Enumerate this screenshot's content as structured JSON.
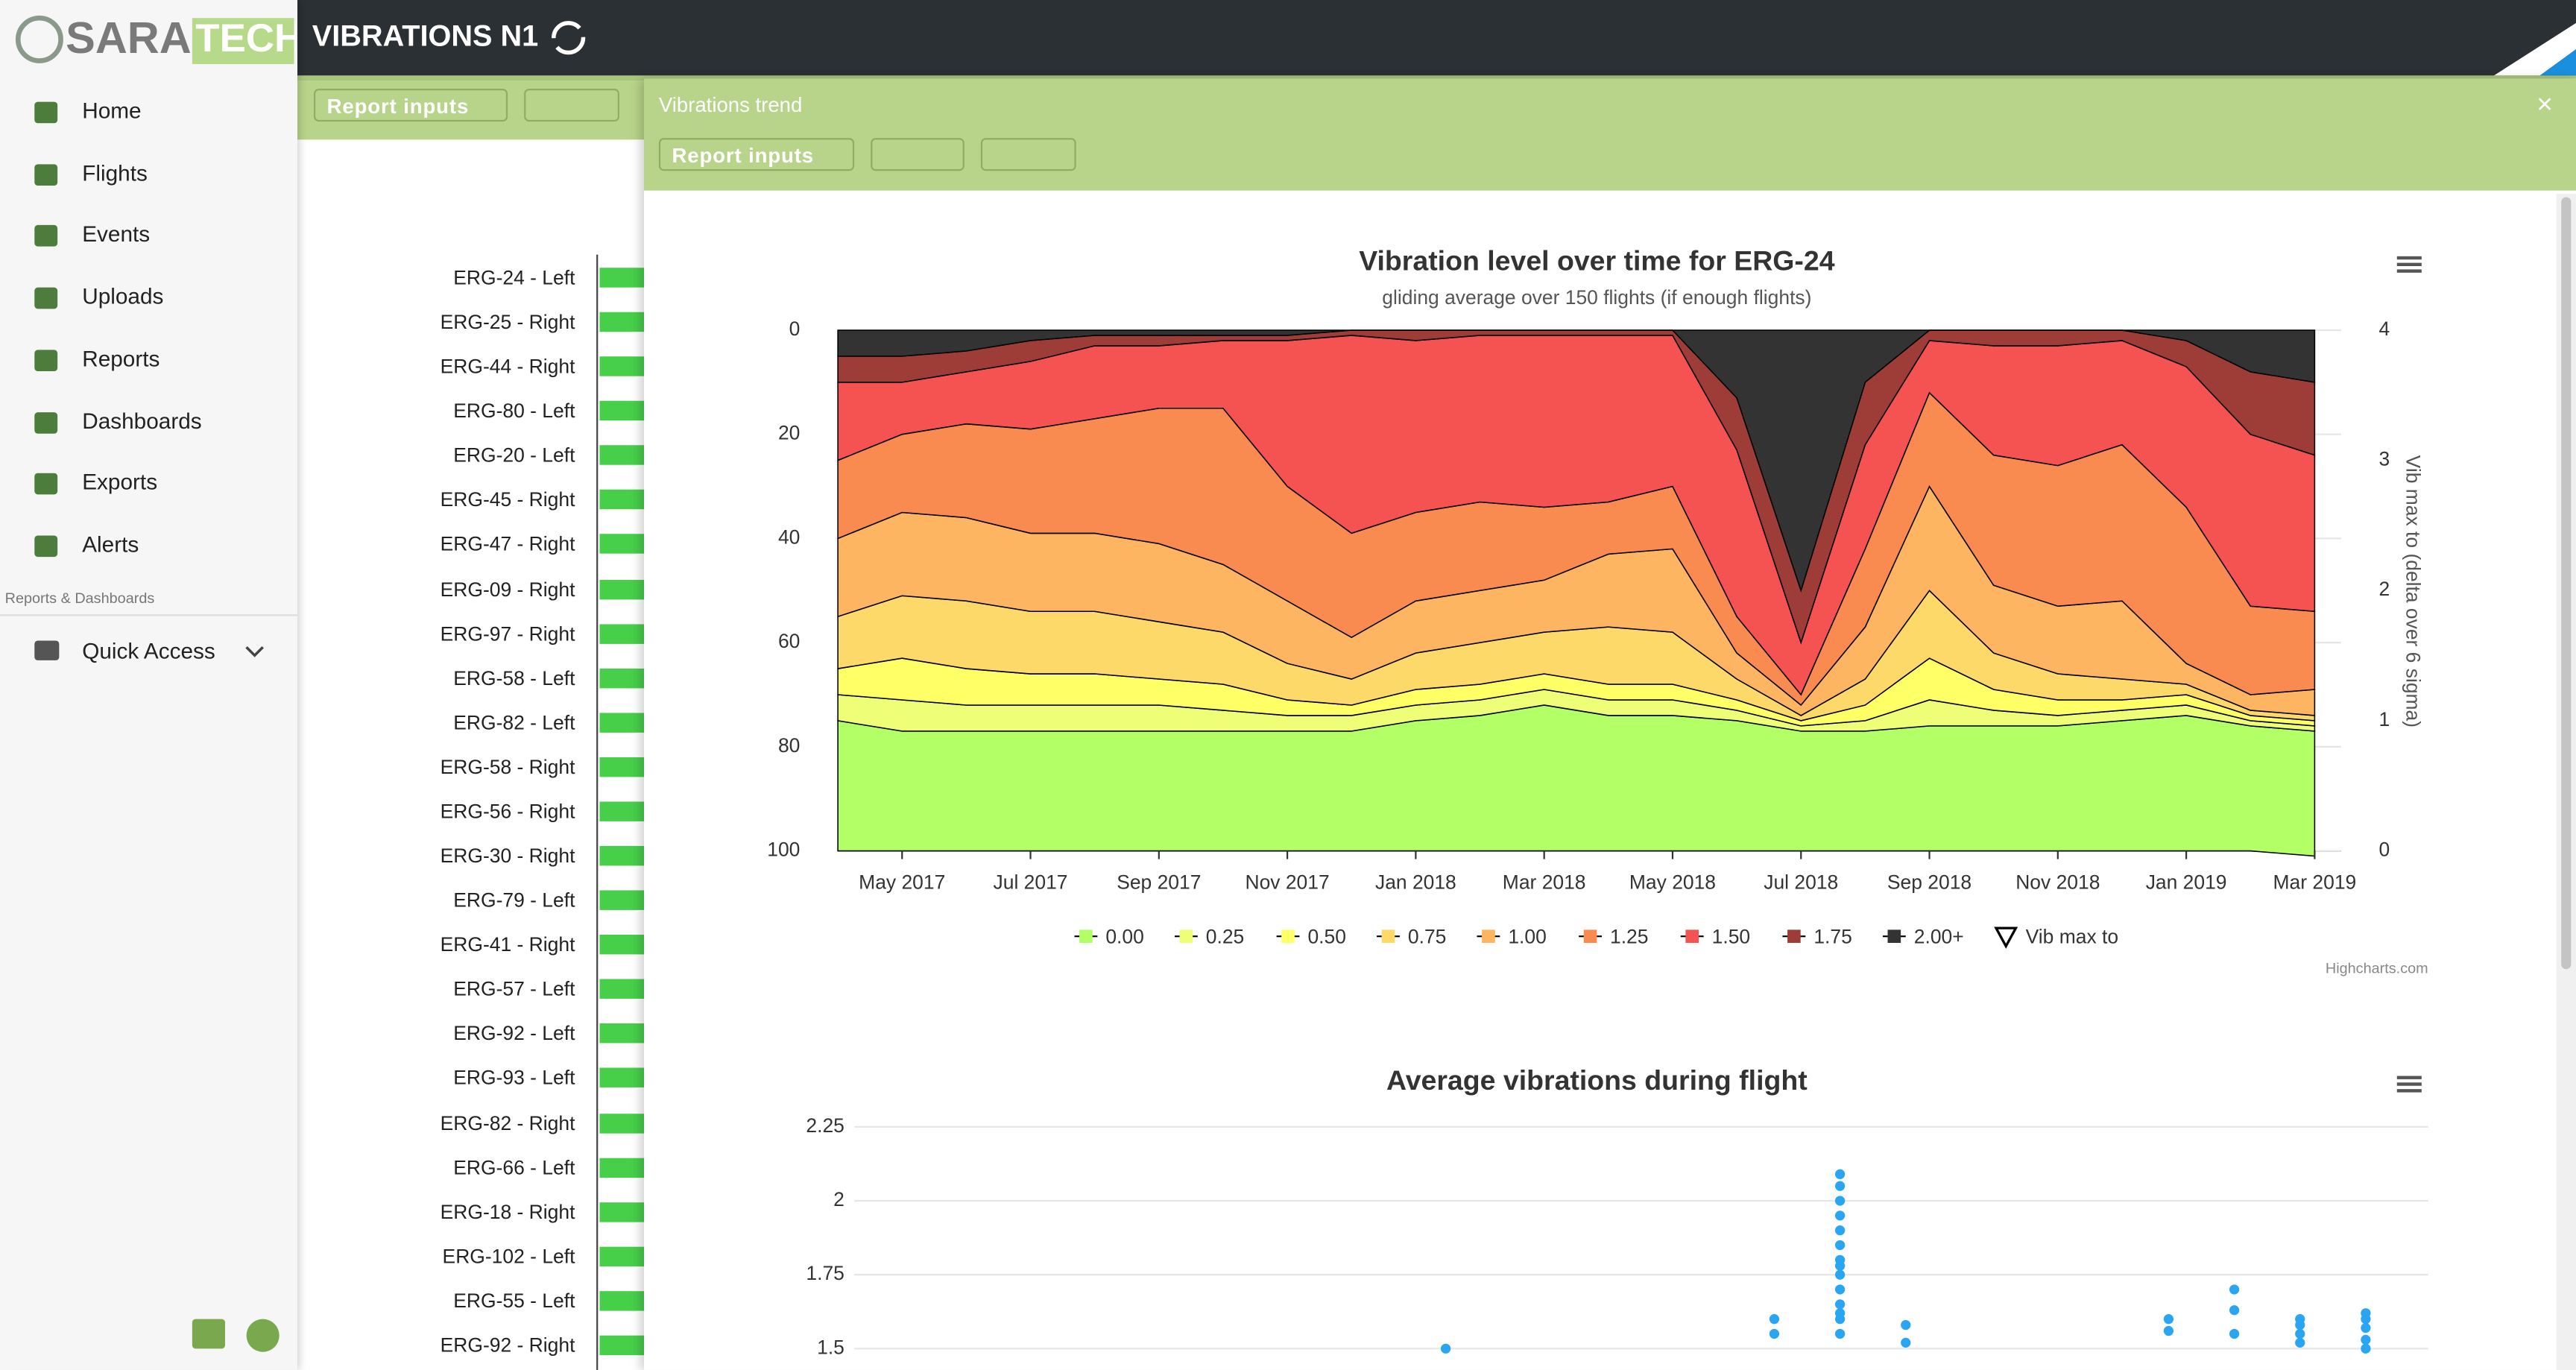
{
  "header": {
    "logo_1": "SARA",
    "logo_2": "TECH",
    "title": "VIBRATIONS N1"
  },
  "sidebar": {
    "menu": [
      "Home",
      "Flights",
      "Events",
      "Uploads",
      "Reports",
      "Dashboards",
      "Exports",
      "Alerts"
    ],
    "section": "Reports & Dashboards",
    "quick_access": "Quick Access"
  },
  "toolbar": {
    "report_inputs": "Report inputs"
  },
  "list": {
    "items": [
      "ERG-24 - Left",
      "ERG-25 - Right",
      "ERG-44 - Right",
      "ERG-80 - Left",
      "ERG-20 - Left",
      "ERG-45 - Right",
      "ERG-47 - Right",
      "ERG-09 - Right",
      "ERG-97 - Right",
      "ERG-58 - Left",
      "ERG-82 - Left",
      "ERG-58 - Right",
      "ERG-56 - Right",
      "ERG-30 - Right",
      "ERG-79 - Left",
      "ERG-41 - Right",
      "ERG-57 - Left",
      "ERG-92 - Left",
      "ERG-93 - Left",
      "ERG-82 - Right",
      "ERG-66 - Left",
      "ERG-18 - Right",
      "ERG-102 - Left",
      "ERG-55 - Left",
      "ERG-92 - Right"
    ]
  },
  "panel": {
    "title": "Vibrations trend",
    "report_inputs": "Report inputs",
    "close": "×"
  },
  "chart_data": [
    {
      "type": "area",
      "stacking": "percent",
      "title": "Vibration level over time for ERG-24",
      "subtitle": "gliding average over 150 flights (if enough flights)",
      "credit": "Highcharts.com",
      "y2label": "Vib max to (delta over 6 sigma)",
      "x": [
        "2017-04",
        "2017-05",
        "2017-06",
        "2017-07",
        "2017-08",
        "2017-09",
        "2017-10",
        "2017-11",
        "2017-12",
        "2018-01",
        "2018-02",
        "2018-03",
        "2018-04",
        "2018-05",
        "2018-06",
        "2018-07",
        "2018-08",
        "2018-09",
        "2018-10",
        "2018-11",
        "2018-12",
        "2019-01",
        "2019-02",
        "2019-03"
      ],
      "xlim": [
        "2017-04",
        "2019-04"
      ],
      "xticks": [
        {
          "value": "2017-05",
          "label": "May 2017"
        },
        {
          "value": "2017-07",
          "label": "Jul 2017"
        },
        {
          "value": "2017-09",
          "label": "Sep 2017"
        },
        {
          "value": "2017-11",
          "label": "Nov 2017"
        },
        {
          "value": "2018-01",
          "label": "Jan 2018"
        },
        {
          "value": "2018-03",
          "label": "Mar 2018"
        },
        {
          "value": "2018-05",
          "label": "May 2018"
        },
        {
          "value": "2018-07",
          "label": "Jul 2018"
        },
        {
          "value": "2018-09",
          "label": "Sep 2018"
        },
        {
          "value": "2018-11",
          "label": "Nov 2018"
        },
        {
          "value": "2019-01",
          "label": "Jan 2019"
        },
        {
          "value": "2019-03",
          "label": "Mar 2019"
        }
      ],
      "ylim": [
        0,
        100
      ],
      "yticks": [
        0,
        20,
        40,
        60,
        80,
        100
      ],
      "reversed": true,
      "y2lim": [
        0,
        4
      ],
      "y2ticks": [
        0,
        1,
        2,
        3,
        4
      ],
      "series": [
        {
          "name": "0.00",
          "color": "#b3ff66",
          "values": [
            25,
            23,
            23,
            23,
            23,
            23,
            23,
            23,
            23,
            25,
            26,
            28,
            26,
            26,
            25,
            23,
            23,
            24,
            24,
            24,
            25,
            26,
            24,
            24
          ]
        },
        {
          "name": "0.25",
          "color": "#eeff77",
          "values": [
            5,
            6,
            5,
            5,
            5,
            5,
            4,
            3,
            3,
            3,
            3,
            3,
            3,
            3,
            2,
            1,
            2,
            5,
            3,
            2,
            2,
            2,
            1,
            1
          ]
        },
        {
          "name": "0.50",
          "color": "#ffff66",
          "values": [
            5,
            8,
            7,
            6,
            6,
            5,
            5,
            3,
            2,
            3,
            3,
            3,
            3,
            3,
            2,
            1,
            3,
            8,
            4,
            3,
            2,
            2,
            1,
            1
          ]
        },
        {
          "name": "0.75",
          "color": "#fdd96a",
          "values": [
            10,
            12,
            13,
            12,
            12,
            11,
            10,
            7,
            5,
            7,
            8,
            8,
            11,
            10,
            4,
            1,
            5,
            13,
            7,
            5,
            4,
            2,
            1,
            1
          ]
        },
        {
          "name": "1.00",
          "color": "#fdb562",
          "values": [
            15,
            16,
            16,
            15,
            15,
            15,
            13,
            12,
            8,
            10,
            10,
            10,
            14,
            16,
            5,
            2,
            10,
            20,
            13,
            13,
            15,
            4,
            3,
            5
          ]
        },
        {
          "name": "1.25",
          "color": "#f98a50",
          "values": [
            15,
            15,
            18,
            20,
            22,
            26,
            30,
            22,
            20,
            17,
            17,
            14,
            10,
            12,
            7,
            2,
            15,
            18,
            25,
            27,
            30,
            30,
            17,
            15
          ]
        },
        {
          "name": "1.50",
          "color": "#f55252",
          "values": [
            15,
            10,
            10,
            13,
            14,
            12,
            13,
            28,
            38,
            33,
            32,
            33,
            32,
            29,
            32,
            10,
            20,
            10,
            21,
            23,
            20,
            27,
            33,
            30
          ]
        },
        {
          "name": "1.75",
          "color": "#9e3d37",
          "values": [
            5,
            5,
            4,
            4,
            2,
            2,
            1,
            1,
            1,
            2,
            1,
            1,
            1,
            1,
            10,
            10,
            12,
            2,
            3,
            3,
            2,
            5,
            12,
            14
          ]
        },
        {
          "name": "2.00+",
          "color": "#333333",
          "values": [
            5,
            5,
            4,
            2,
            1,
            1,
            1,
            1,
            0,
            0,
            0,
            0,
            0,
            0,
            13,
            50,
            10,
            0,
            0,
            0,
            0,
            2,
            8,
            10
          ]
        },
        {
          "name": "Vib max to",
          "color": "#000000",
          "axis": "y2",
          "values": [
            null,
            null,
            null,
            null,
            null,
            null,
            null,
            null,
            null,
            null,
            null,
            null,
            null,
            null,
            null,
            null,
            null,
            null,
            null,
            null,
            null,
            null,
            null,
            null
          ]
        }
      ]
    },
    {
      "type": "scatter",
      "title": "Average vibrations during flight",
      "color": "#2aa5f2",
      "xlim": [
        "2017-04",
        "2019-04"
      ],
      "ylim": [
        1.5,
        2.25
      ],
      "yticks": [
        1.5,
        1.75,
        2,
        2.25
      ],
      "grid": true,
      "x": [
        "2018-01",
        "2018-06",
        "2018-06",
        "2018-07",
        "2018-07",
        "2018-07",
        "2018-07",
        "2018-07",
        "2018-07",
        "2018-07",
        "2018-07",
        "2018-07",
        "2018-07",
        "2018-07",
        "2018-07",
        "2018-07",
        "2018-07",
        "2018-08",
        "2018-08",
        "2018-12",
        "2018-12",
        "2019-01",
        "2019-01",
        "2019-01",
        "2019-02",
        "2019-02",
        "2019-02",
        "2019-02",
        "2019-03",
        "2019-03",
        "2019-03",
        "2019-03",
        "2019-03"
      ],
      "values": [
        1.5,
        1.55,
        1.6,
        1.55,
        1.6,
        1.65,
        1.7,
        1.75,
        1.8,
        1.85,
        1.9,
        1.95,
        2.0,
        2.05,
        2.09,
        1.78,
        1.62,
        1.52,
        1.58,
        1.6,
        1.56,
        1.63,
        1.55,
        1.7,
        1.6,
        1.58,
        1.55,
        1.52,
        1.62,
        1.6,
        1.57,
        1.53,
        1.5
      ]
    }
  ]
}
